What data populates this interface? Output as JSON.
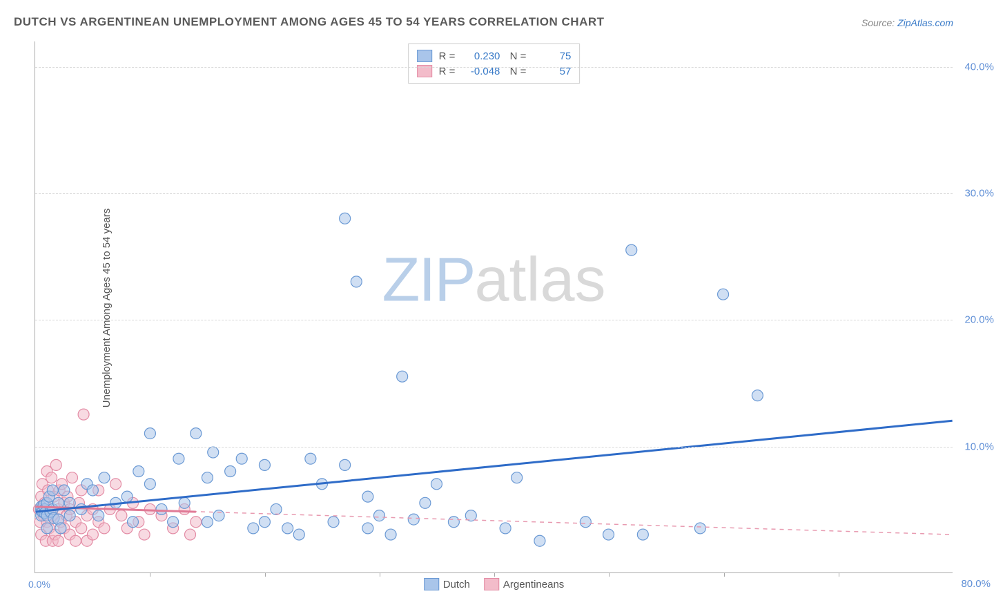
{
  "title": "DUTCH VS ARGENTINEAN UNEMPLOYMENT AMONG AGES 45 TO 54 YEARS CORRELATION CHART",
  "source_label": "Source: ",
  "source_name": "ZipAtlas.com",
  "ylabel": "Unemployment Among Ages 45 to 54 years",
  "watermark": {
    "part1": "ZIP",
    "part2": "atlas"
  },
  "chart": {
    "type": "scatter",
    "xlim": [
      0,
      80
    ],
    "ylim": [
      0,
      42
    ],
    "x_ticks_shown": [
      "0.0%",
      "80.0%"
    ],
    "x_tick_marks_at": [
      10,
      20,
      30,
      40,
      50,
      60,
      70
    ],
    "y_ticks": [
      {
        "value": 10,
        "label": "10.0%"
      },
      {
        "value": 20,
        "label": "20.0%"
      },
      {
        "value": 30,
        "label": "30.0%"
      },
      {
        "value": 40,
        "label": "40.0%"
      }
    ],
    "grid_color": "#d8d8d8",
    "background_color": "#ffffff",
    "axis_color": "#aaaaaa",
    "marker_radius": 8,
    "marker_stroke_width": 1.2,
    "series": [
      {
        "name": "Dutch",
        "fill_color": "#a9c5ea",
        "stroke_color": "#6a99d4",
        "fill_opacity": 0.55,
        "R": "0.230",
        "N": "75",
        "trend": {
          "x1": 0,
          "y1": 4.8,
          "x2": 80,
          "y2": 12.0,
          "color": "#2f6hc8",
          "width": 3,
          "dashed": false
        },
        "points": [
          [
            0.5,
            4.5
          ],
          [
            0.5,
            5
          ],
          [
            0.5,
            5.2
          ],
          [
            0.6,
            4.8
          ],
          [
            0.7,
            5.3
          ],
          [
            0.8,
            5
          ],
          [
            0.8,
            4.7
          ],
          [
            1,
            5.5
          ],
          [
            1,
            4.5
          ],
          [
            1,
            3.5
          ],
          [
            1.2,
            6.0
          ],
          [
            1.3,
            4.8
          ],
          [
            1.5,
            5.0
          ],
          [
            1.5,
            6.5
          ],
          [
            1.6,
            4.3
          ],
          [
            2,
            5.5
          ],
          [
            2,
            4.2
          ],
          [
            2.2,
            3.5
          ],
          [
            2.5,
            6.5
          ],
          [
            3,
            4.5
          ],
          [
            3,
            5.5
          ],
          [
            4,
            5
          ],
          [
            4.5,
            7
          ],
          [
            5,
            6.5
          ],
          [
            5.5,
            4.5
          ],
          [
            6,
            7.5
          ],
          [
            7,
            5.5
          ],
          [
            8,
            6
          ],
          [
            8.5,
            4
          ],
          [
            9,
            8
          ],
          [
            10,
            7
          ],
          [
            10,
            11
          ],
          [
            11,
            5
          ],
          [
            12,
            4
          ],
          [
            12.5,
            9
          ],
          [
            13,
            5.5
          ],
          [
            14,
            11
          ],
          [
            15,
            7.5
          ],
          [
            15,
            4
          ],
          [
            15.5,
            9.5
          ],
          [
            16,
            4.5
          ],
          [
            17,
            8
          ],
          [
            18,
            9
          ],
          [
            19,
            3.5
          ],
          [
            20,
            4
          ],
          [
            20,
            8.5
          ],
          [
            21,
            5
          ],
          [
            22,
            3.5
          ],
          [
            23,
            3
          ],
          [
            24,
            9
          ],
          [
            25,
            7
          ],
          [
            26,
            4
          ],
          [
            27,
            8.5
          ],
          [
            27,
            28
          ],
          [
            28,
            23
          ],
          [
            29,
            6
          ],
          [
            29,
            3.5
          ],
          [
            30,
            4.5
          ],
          [
            31,
            3
          ],
          [
            32,
            15.5
          ],
          [
            33,
            4.2
          ],
          [
            34,
            5.5
          ],
          [
            35,
            7
          ],
          [
            36.5,
            4
          ],
          [
            38,
            4.5
          ],
          [
            41,
            3.5
          ],
          [
            42,
            7.5
          ],
          [
            44,
            2.5
          ],
          [
            48,
            4
          ],
          [
            50,
            3
          ],
          [
            52,
            25.5
          ],
          [
            53,
            3
          ],
          [
            58,
            3.5
          ],
          [
            60,
            22
          ],
          [
            63,
            14
          ]
        ]
      },
      {
        "name": "Argentineans",
        "fill_color": "#f3bcca",
        "stroke_color": "#e38ca5",
        "fill_opacity": 0.55,
        "R": "-0.048",
        "N": "57",
        "trend": {
          "x1": 0,
          "y1": 5.2,
          "x2": 80,
          "y2": 3.0,
          "color": "#e89ab0",
          "width": 1.5,
          "dashed": true
        },
        "trend_solid": {
          "x1": 0,
          "y1": 5.2,
          "x2": 14,
          "y2": 4.8,
          "color": "#e07a96",
          "width": 3
        },
        "points": [
          [
            0.3,
            5
          ],
          [
            0.4,
            4
          ],
          [
            0.5,
            6
          ],
          [
            0.5,
            3
          ],
          [
            0.6,
            7
          ],
          [
            0.7,
            4.5
          ],
          [
            0.8,
            5.5
          ],
          [
            0.9,
            2.5
          ],
          [
            1,
            8
          ],
          [
            1,
            4
          ],
          [
            1.1,
            6.5
          ],
          [
            1.2,
            3.5
          ],
          [
            1.3,
            5
          ],
          [
            1.4,
            7.5
          ],
          [
            1.5,
            4.5
          ],
          [
            1.5,
            2.5
          ],
          [
            1.6,
            6
          ],
          [
            1.7,
            3
          ],
          [
            1.8,
            8.5
          ],
          [
            2,
            5
          ],
          [
            2,
            2.5
          ],
          [
            2.1,
            6.5
          ],
          [
            2.2,
            4
          ],
          [
            2.3,
            7
          ],
          [
            2.5,
            3.5
          ],
          [
            2.5,
            5.5
          ],
          [
            2.7,
            4.5
          ],
          [
            2.8,
            6
          ],
          [
            3,
            3
          ],
          [
            3,
            5
          ],
          [
            3.2,
            7.5
          ],
          [
            3.5,
            4
          ],
          [
            3.5,
            2.5
          ],
          [
            3.8,
            5.5
          ],
          [
            4,
            3.5
          ],
          [
            4,
            6.5
          ],
          [
            4.2,
            12.5
          ],
          [
            4.5,
            4.5
          ],
          [
            4.5,
            2.5
          ],
          [
            5,
            5
          ],
          [
            5,
            3
          ],
          [
            5.5,
            4
          ],
          [
            5.5,
            6.5
          ],
          [
            6,
            3.5
          ],
          [
            6.5,
            5
          ],
          [
            7,
            7
          ],
          [
            7.5,
            4.5
          ],
          [
            8,
            3.5
          ],
          [
            8.5,
            5.5
          ],
          [
            9,
            4
          ],
          [
            9.5,
            3
          ],
          [
            10,
            5
          ],
          [
            11,
            4.5
          ],
          [
            12,
            3.5
          ],
          [
            13,
            5
          ],
          [
            13.5,
            3
          ],
          [
            14,
            4
          ]
        ]
      }
    ],
    "legend_bottom": [
      {
        "label": "Dutch",
        "fill": "#a9c5ea",
        "stroke": "#6a99d4"
      },
      {
        "label": "Argentineans",
        "fill": "#f3bcca",
        "stroke": "#e38ca5"
      }
    ]
  }
}
